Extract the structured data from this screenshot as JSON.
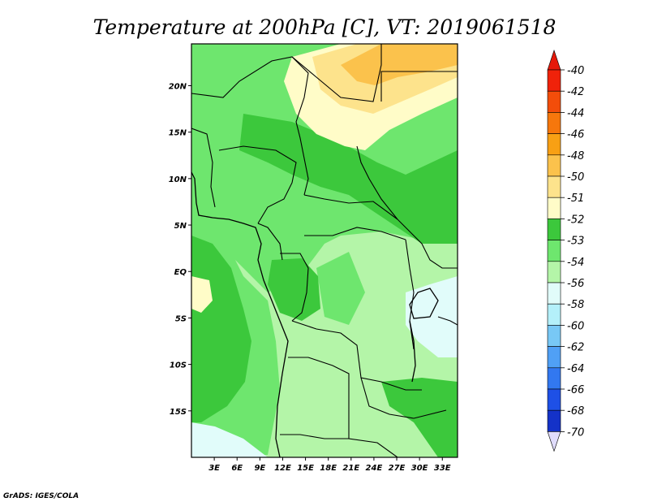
{
  "title": "Temperature at 200hPa [C], VT: 2019061518",
  "credit": "GrADS: IGES/COLA",
  "map": {
    "lon_range": [
      0,
      35
    ],
    "lat_range": [
      -20,
      24.5
    ],
    "lat_ticks": [
      {
        "lat": 20,
        "label": "20N"
      },
      {
        "lat": 15,
        "label": "15N"
      },
      {
        "lat": 10,
        "label": "10N"
      },
      {
        "lat": 5,
        "label": "5N"
      },
      {
        "lat": 0,
        "label": "EQ"
      },
      {
        "lat": -5,
        "label": "5S"
      },
      {
        "lat": -10,
        "label": "10S"
      },
      {
        "lat": -15,
        "label": "15S"
      }
    ],
    "lon_ticks": [
      {
        "lon": 3,
        "label": "3E"
      },
      {
        "lon": 6,
        "label": "6E"
      },
      {
        "lon": 9,
        "label": "9E"
      },
      {
        "lon": 12,
        "label": "12E"
      },
      {
        "lon": 15,
        "label": "15E"
      },
      {
        "lon": 18,
        "label": "18E"
      },
      {
        "lon": 21,
        "label": "21E"
      },
      {
        "lon": 24,
        "label": "24E"
      },
      {
        "lon": 27,
        "label": "27E"
      },
      {
        "lon": 30,
        "label": "30E"
      },
      {
        "lon": 33,
        "label": "33E"
      }
    ]
  },
  "colorbar": {
    "levels": [
      {
        "label": "-40",
        "color": "#f0220a"
      },
      {
        "label": "-42",
        "color": "#f34d0a"
      },
      {
        "label": "-44",
        "color": "#f6770c"
      },
      {
        "label": "-46",
        "color": "#f8a014"
      },
      {
        "label": "-48",
        "color": "#fbc24c"
      },
      {
        "label": "-50",
        "color": "#fde38c"
      },
      {
        "label": "-51",
        "color": "#fffcc8"
      },
      {
        "label": "-52",
        "color": "#3cc83c"
      },
      {
        "label": "-53",
        "color": "#6ee66e"
      },
      {
        "label": "-54",
        "color": "#b4f5a8"
      },
      {
        "label": "-56",
        "color": "#e1fcfa"
      },
      {
        "label": "-58",
        "color": "#b4f0fa"
      },
      {
        "label": "-60",
        "color": "#78c8f5"
      },
      {
        "label": "-62",
        "color": "#50a0f5"
      },
      {
        "label": "-64",
        "color": "#3278f0"
      },
      {
        "label": "-66",
        "color": "#1e50e6"
      },
      {
        "label": "-68",
        "color": "#1432c8"
      },
      {
        "label": "-70",
        "color": "#0a14a0"
      }
    ],
    "top_color": "#e6190a",
    "bottom_color": "#e0dcfc"
  }
}
